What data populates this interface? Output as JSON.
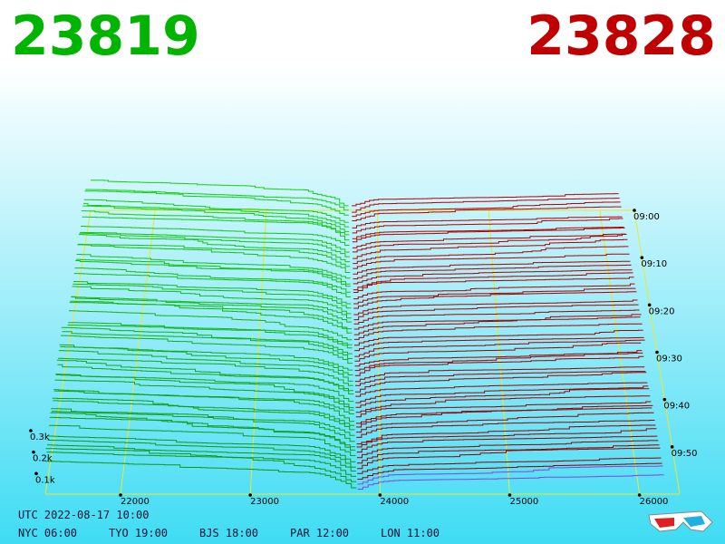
{
  "chart_data": {
    "type": "depth3d",
    "best_bid": 23819,
    "best_ask": 23828,
    "bid_color": "#00b400",
    "ask_color": "#c00000",
    "xlim": [
      21420,
      26310
    ],
    "xticks": [
      22000,
      23000,
      24000,
      25000,
      26000
    ],
    "depth_lim": [
      0,
      300
    ],
    "depth_ticks": [
      {
        "value": 100,
        "label": "0.1k"
      },
      {
        "value": 200,
        "label": "0.2k"
      },
      {
        "value": 300,
        "label": "0.3k"
      }
    ],
    "time_ticks": [
      "09:00",
      "09:10",
      "09:20",
      "09:30",
      "09:40",
      "09:50"
    ],
    "grid_color": "#e8e830",
    "clock": {
      "utc": "UTC 2022-08-17 10:00",
      "zones": [
        "NYC 06:00",
        "TYO 19:00",
        "BJS 18:00",
        "PAR 12:00",
        "LON 11:00"
      ]
    }
  }
}
